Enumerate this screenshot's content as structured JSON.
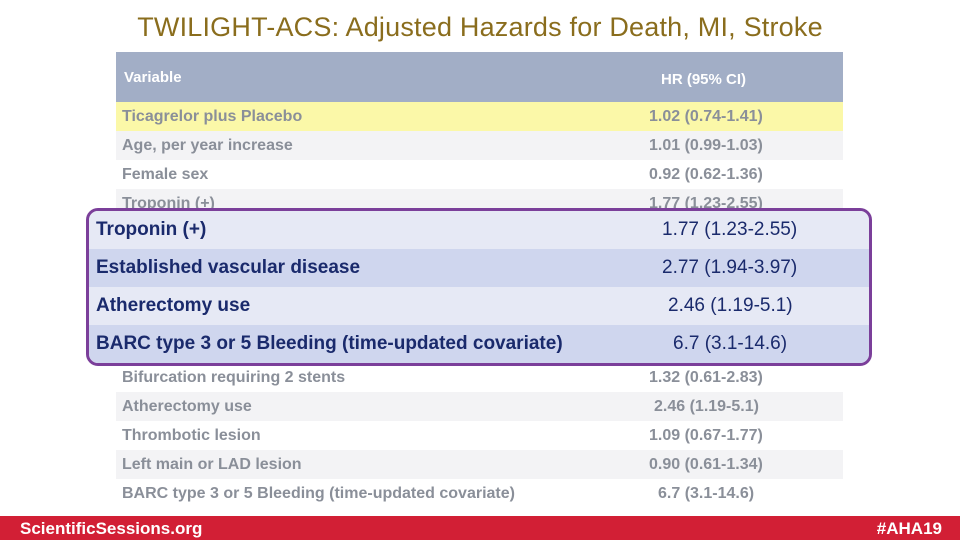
{
  "title": "TWILIGHT-ACS: Adjusted Hazards for Death, MI, Stroke",
  "table": {
    "header": {
      "variable": "Variable",
      "hr": "HR (95% CI)"
    },
    "rows_top": [
      {
        "variable": "Ticagrelor plus Placebo",
        "hr": "1.02 (0.74-1.41)",
        "highlight": true
      },
      {
        "variable": "Age, per year increase",
        "hr": "1.01 (0.99-1.03)"
      },
      {
        "variable": "Female sex",
        "hr": "0.92 (0.62-1.36)"
      },
      {
        "variable": "Troponin (+)",
        "hr": "1.77 (1.23-2.55)"
      }
    ],
    "rows_bottom": [
      {
        "variable": "Bifurcation requiring 2 stents",
        "hr": "1.32 (0.61-2.83)"
      },
      {
        "variable": "Atherectomy use",
        "hr": "2.46 (1.19-5.1)"
      },
      {
        "variable": "Thrombotic lesion",
        "hr": "1.09 (0.67-1.77)"
      },
      {
        "variable": "Left main or LAD lesion",
        "hr": "0.90 (0.61-1.34)"
      },
      {
        "variable": "BARC type 3 or 5 Bleeding (time-updated covariate)",
        "hr": "6.7 (3.1-14.6)"
      }
    ]
  },
  "callout": {
    "rows": [
      {
        "variable": "Troponin (+)",
        "hr": "1.77 (1.23-2.55)"
      },
      {
        "variable": "Established vascular disease",
        "hr": "2.77 (1.94-3.97)"
      },
      {
        "variable": "Atherectomy use",
        "hr": "2.46 (1.19-5.1)"
      },
      {
        "variable": "BARC type 3 or 5 Bleeding (time-updated covariate)",
        "hr": "6.7 (3.1-14.6)"
      }
    ]
  },
  "footer": {
    "left": "ScientificSessions.org",
    "right": "#AHA19"
  },
  "colors": {
    "title": "#8a6d1d",
    "footer_bg": "#d21f35",
    "callout_border": "#7b3f9a",
    "header_bg": "#a2aec6",
    "highlight": "#fbf8a8"
  }
}
